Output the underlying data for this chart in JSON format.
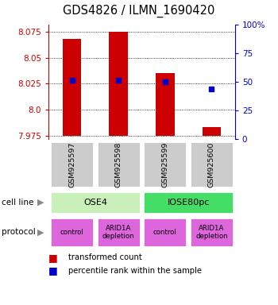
{
  "title": "GDS4826 / ILMN_1690420",
  "samples": [
    "GSM925597",
    "GSM925598",
    "GSM925599",
    "GSM925600"
  ],
  "red_bar_bottoms": [
    7.975,
    7.975,
    7.975,
    7.975
  ],
  "red_bar_tops": [
    8.068,
    8.075,
    8.035,
    7.983
  ],
  "blue_dot_values": [
    8.028,
    8.028,
    8.027,
    8.02
  ],
  "y_left_ticks": [
    7.975,
    8.0,
    8.025,
    8.05,
    8.075
  ],
  "y_right_ticks": [
    0,
    25,
    50,
    75,
    100
  ],
  "y_min": 7.972,
  "y_max": 8.082,
  "bar_color": "#cc0000",
  "dot_color": "#0000cc",
  "left_tick_color": "#cc0000",
  "right_tick_color": "#0000cc",
  "sample_box_color": "#cccccc",
  "cell_line_ose4_color": "#c8f0b8",
  "cell_line_iose_color": "#44dd66",
  "protocol_color": "#dd66dd",
  "bar_width": 0.4,
  "protocol_labels": [
    "control",
    "ARID1A\ndepletion",
    "control",
    "ARID1A\ndepletion"
  ]
}
